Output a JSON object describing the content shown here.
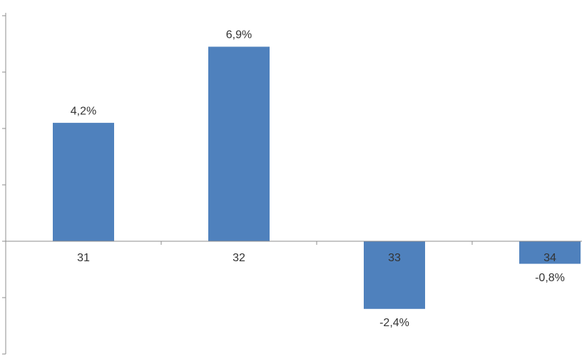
{
  "chart_data": {
    "type": "bar",
    "categories": [
      "31",
      "32",
      "33",
      "34"
    ],
    "values": [
      4.2,
      6.9,
      -2.4,
      -0.8
    ],
    "value_labels": [
      "4,2%",
      "6,9%",
      "-2,4%",
      "-0,8%"
    ],
    "color": "#4f81bd",
    "ylim": [
      -4,
      8
    ],
    "yticks": [
      -4,
      -2,
      0,
      2,
      4,
      6,
      8
    ],
    "grid": false
  }
}
